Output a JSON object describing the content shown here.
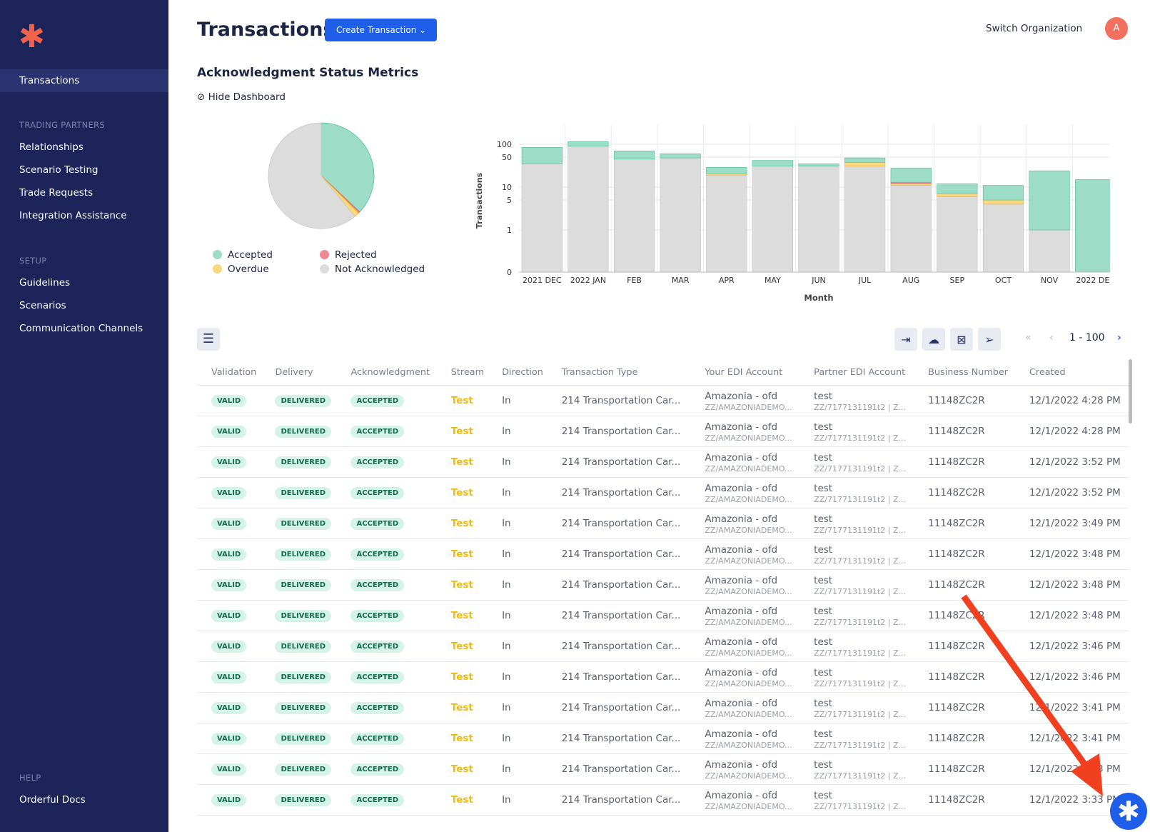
{
  "sidebar": {
    "logo": "Orderful",
    "items": [
      {
        "label": "Transactions"
      }
    ],
    "trading_partners_heading": "TRADING PARTNERS",
    "trading_partners": [
      {
        "label": "Relationships"
      },
      {
        "label": "Scenario Testing"
      },
      {
        "label": "Trade Requests"
      },
      {
        "label": "Integration Assistance"
      }
    ],
    "setup_heading": "SETUP",
    "setup": [
      {
        "label": "Guidelines"
      },
      {
        "label": "Scenarios"
      },
      {
        "label": "Communication Channels"
      }
    ],
    "help_heading": "HELP",
    "help": [
      {
        "label": "Orderful Docs"
      }
    ]
  },
  "header": {
    "title": "Transactions",
    "create_label": "Create Transaction",
    "switch_org": "Switch Organization",
    "avatar": "A"
  },
  "dashboard": {
    "title": "Acknowledgment Status Metrics",
    "hide_label": "Hide Dashboard"
  },
  "colors": {
    "accepted": "#9ddcc7",
    "rejected": "#ee8a93",
    "overdue": "#f9d87f",
    "not_acknowledged": "#dcdcdc"
  },
  "chart_data": [
    {
      "type": "pie",
      "labels": [
        "Accepted",
        "Rejected",
        "Overdue",
        "Not Acknowledged"
      ],
      "values": [
        37,
        0.5,
        1.5,
        61
      ]
    },
    {
      "type": "bar",
      "stacked": true,
      "xlabel": "Month",
      "ylabel": "Transactions",
      "yscale": "symlog",
      "yticks": [
        0,
        1,
        5,
        10,
        50,
        100
      ],
      "categories": [
        "2021 DEC",
        "2022 JAN",
        "FEB",
        "MAR",
        "APR",
        "MAY",
        "JUN",
        "JUL",
        "AUG",
        "SEP",
        "OCT",
        "NOV",
        "2022 DEC"
      ],
      "series": [
        {
          "name": "Not Acknowledged",
          "values": [
            35,
            90,
            45,
            48,
            19,
            31,
            31,
            31,
            11,
            6,
            4,
            1,
            0
          ]
        },
        {
          "name": "Overdue",
          "values": [
            0,
            0,
            0,
            0,
            2,
            0,
            0,
            7,
            1,
            1,
            1,
            0,
            0
          ]
        },
        {
          "name": "Rejected",
          "values": [
            0,
            0,
            0,
            0,
            0,
            0,
            0,
            0,
            1,
            0,
            0,
            0,
            0
          ]
        },
        {
          "name": "Accepted",
          "values": [
            50,
            25,
            25,
            12,
            8,
            11,
            4,
            10,
            15,
            5,
            6,
            23,
            15
          ]
        }
      ]
    }
  ],
  "toolbar": {
    "pager": "1 - 100"
  },
  "table": {
    "columns": [
      "Validation",
      "Delivery",
      "Acknowledgment",
      "Stream",
      "Direction",
      "Transaction Type",
      "Your EDI Account",
      "Partner EDI Account",
      "Business Number",
      "Created"
    ],
    "row_template": {
      "validation": "VALID",
      "delivery": "DELIVERED",
      "ack": "ACCEPTED",
      "stream": "Test",
      "direction": "In",
      "type": "214 Transportation Car...",
      "your_name": "Amazonia - ofd",
      "your_id": "ZZ/AMAZONIADEMO...",
      "partner_name": "test",
      "partner_id": "ZZ/7177131191t2 | Z...",
      "business": "11148ZC2R"
    },
    "created": [
      "12/1/2022 4:28 PM",
      "12/1/2022 4:28 PM",
      "12/1/2022 3:52 PM",
      "12/1/2022 3:52 PM",
      "12/1/2022 3:49 PM",
      "12/1/2022 3:48 PM",
      "12/1/2022 3:48 PM",
      "12/1/2022 3:48 PM",
      "12/1/2022 3:46 PM",
      "12/1/2022 3:46 PM",
      "12/1/2022 3:41 PM",
      "12/1/2022 3:41 PM",
      "12/1/2022 3:33 PM",
      "12/1/2022 3:33 PM"
    ]
  }
}
